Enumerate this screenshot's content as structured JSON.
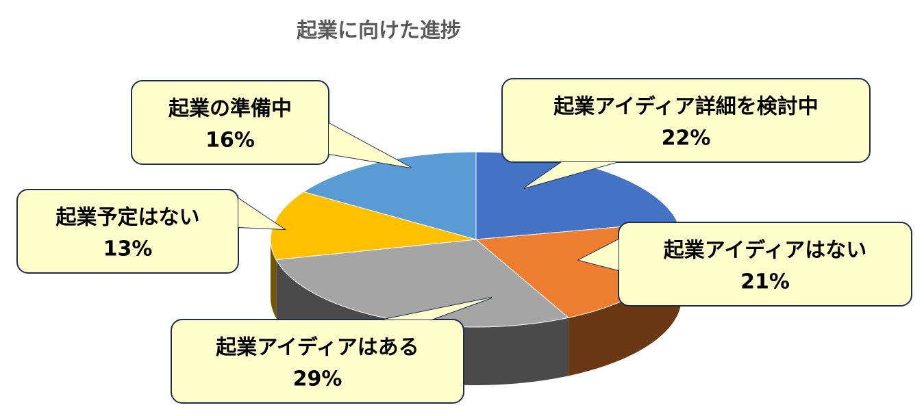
{
  "chart_data": {
    "type": "pie",
    "title": "起業に向けた進捗",
    "categories": [
      "起業アイディア詳細を検討中",
      "起業アイディアはない",
      "起業アイディアはある",
      "起業予定はない",
      "起業の準備中"
    ],
    "values": [
      22,
      21,
      29,
      13,
      16
    ],
    "value_labels": [
      "22%",
      "21%",
      "29%",
      "13%",
      "16%"
    ],
    "colors": [
      "#4472c4",
      "#ed7d31",
      "#a5a5a5",
      "#ffc000",
      "#5b9bd5"
    ]
  }
}
